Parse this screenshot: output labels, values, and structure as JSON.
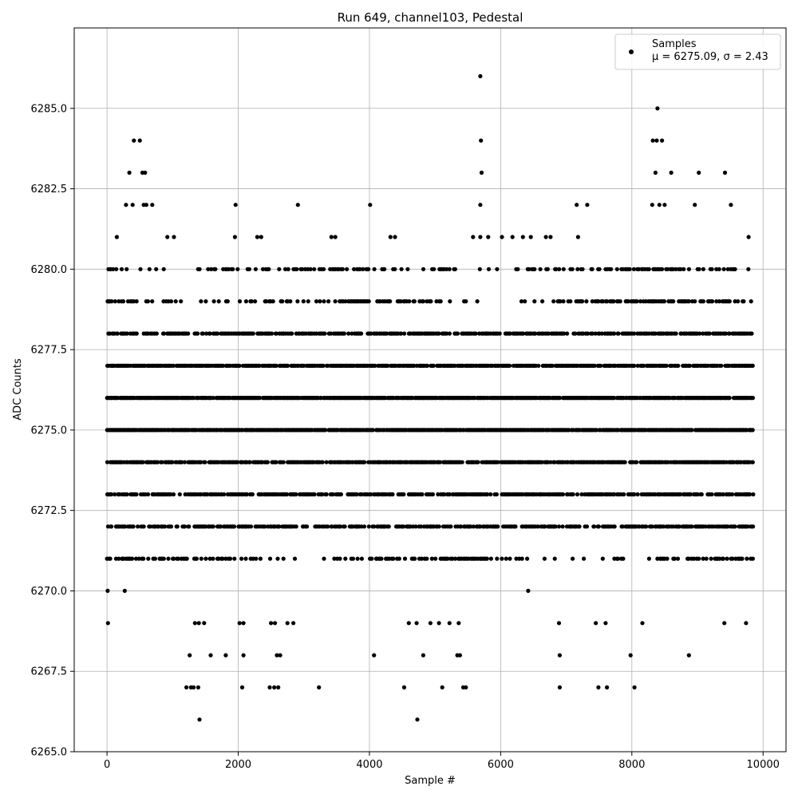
{
  "chart_data": {
    "type": "scatter",
    "title": "Run 649, channel103, Pedestal",
    "xlabel": "Sample #",
    "ylabel": "ADC Counts",
    "xlim": [
      -500,
      10350
    ],
    "ylim": [
      6265.0,
      6287.5
    ],
    "xticks": [
      0,
      2000,
      4000,
      6000,
      8000,
      10000
    ],
    "xtick_labels": [
      "0",
      "2000",
      "4000",
      "6000",
      "8000",
      "10000"
    ],
    "yticks": [
      6265.0,
      6267.5,
      6270.0,
      6272.5,
      6275.0,
      6277.5,
      6280.0,
      6282.5,
      6285.0
    ],
    "ytick_labels": [
      "6265.0",
      "6267.5",
      "6270.0",
      "6272.5",
      "6275.0",
      "6277.5",
      "6280.0",
      "6282.5",
      "6285.0"
    ],
    "grid": true,
    "marker_color": "#000000",
    "legend": {
      "placement": "top-right",
      "series_name": "Samples",
      "stats_text": "μ = 6275.09, σ = 2.43"
    },
    "series": [
      {
        "name": "Samples",
        "x_range": [
          0,
          9850
        ],
        "dense_levels": [
          6272,
          6273,
          6274,
          6275,
          6276,
          6277,
          6278
        ],
        "medium_levels": [
          6271,
          6279,
          6280
        ],
        "points": [
          [
            0,
            6271
          ],
          [
            10,
            6270
          ],
          [
            15,
            6269
          ],
          [
            30,
            6279
          ],
          [
            50,
            6280
          ],
          [
            150,
            6281
          ],
          [
            230,
            6271
          ],
          [
            270,
            6270
          ],
          [
            290,
            6282
          ],
          [
            340,
            6283
          ],
          [
            390,
            6282
          ],
          [
            410,
            6284
          ],
          [
            500,
            6284
          ],
          [
            540,
            6283
          ],
          [
            580,
            6283
          ],
          [
            560,
            6282
          ],
          [
            600,
            6282
          ],
          [
            690,
            6282
          ],
          [
            920,
            6281
          ],
          [
            1020,
            6281
          ],
          [
            1210,
            6267
          ],
          [
            1260,
            6268
          ],
          [
            1280,
            6267
          ],
          [
            1320,
            6267
          ],
          [
            1390,
            6267
          ],
          [
            1410,
            6266
          ],
          [
            1340,
            6269
          ],
          [
            1400,
            6269
          ],
          [
            1480,
            6269
          ],
          [
            1580,
            6268
          ],
          [
            1810,
            6268
          ],
          [
            1960,
            6282
          ],
          [
            1950,
            6281
          ],
          [
            2060,
            6267
          ],
          [
            2080,
            6268
          ],
          [
            2020,
            6269
          ],
          [
            2080,
            6269
          ],
          [
            2290,
            6281
          ],
          [
            2350,
            6281
          ],
          [
            2480,
            6267
          ],
          [
            2550,
            6267
          ],
          [
            2590,
            6268
          ],
          [
            2640,
            6268
          ],
          [
            2500,
            6269
          ],
          [
            2560,
            6269
          ],
          [
            2610,
            6267
          ],
          [
            2750,
            6269
          ],
          [
            2840,
            6269
          ],
          [
            2910,
            6282
          ],
          [
            3230,
            6267
          ],
          [
            3420,
            6281
          ],
          [
            3480,
            6281
          ],
          [
            4010,
            6282
          ],
          [
            4070,
            6268
          ],
          [
            4320,
            6281
          ],
          [
            4390,
            6281
          ],
          [
            4530,
            6267
          ],
          [
            4600,
            6269
          ],
          [
            4730,
            6266
          ],
          [
            4720,
            6269
          ],
          [
            4820,
            6268
          ],
          [
            4930,
            6269
          ],
          [
            5060,
            6269
          ],
          [
            5110,
            6267
          ],
          [
            5220,
            6269
          ],
          [
            5340,
            6268
          ],
          [
            5380,
            6268
          ],
          [
            5360,
            6269
          ],
          [
            5430,
            6267
          ],
          [
            5470,
            6267
          ],
          [
            5690,
            6286
          ],
          [
            5690,
            6282
          ],
          [
            5700,
            6284
          ],
          [
            5710,
            6283
          ],
          [
            5580,
            6281
          ],
          [
            5690,
            6281
          ],
          [
            5810,
            6281
          ],
          [
            6020,
            6281
          ],
          [
            6180,
            6281
          ],
          [
            6340,
            6281
          ],
          [
            6420,
            6270
          ],
          [
            6460,
            6281
          ],
          [
            6690,
            6281
          ],
          [
            6760,
            6281
          ],
          [
            6890,
            6269
          ],
          [
            6900,
            6268
          ],
          [
            6900,
            6267
          ],
          [
            7160,
            6282
          ],
          [
            7320,
            6282
          ],
          [
            7180,
            6281
          ],
          [
            7450,
            6269
          ],
          [
            7490,
            6267
          ],
          [
            7600,
            6269
          ],
          [
            7620,
            6267
          ],
          [
            7980,
            6268
          ],
          [
            8040,
            6267
          ],
          [
            8160,
            6269
          ],
          [
            8320,
            6284
          ],
          [
            8390,
            6285
          ],
          [
            8380,
            6284
          ],
          [
            8460,
            6284
          ],
          [
            8360,
            6283
          ],
          [
            8310,
            6282
          ],
          [
            8420,
            6282
          ],
          [
            8500,
            6282
          ],
          [
            8600,
            6283
          ],
          [
            8870,
            6268
          ],
          [
            8960,
            6282
          ],
          [
            9020,
            6283
          ],
          [
            9420,
            6283
          ],
          [
            9510,
            6282
          ],
          [
            9410,
            6269
          ],
          [
            9740,
            6269
          ],
          [
            9780,
            6281
          ]
        ]
      }
    ]
  }
}
